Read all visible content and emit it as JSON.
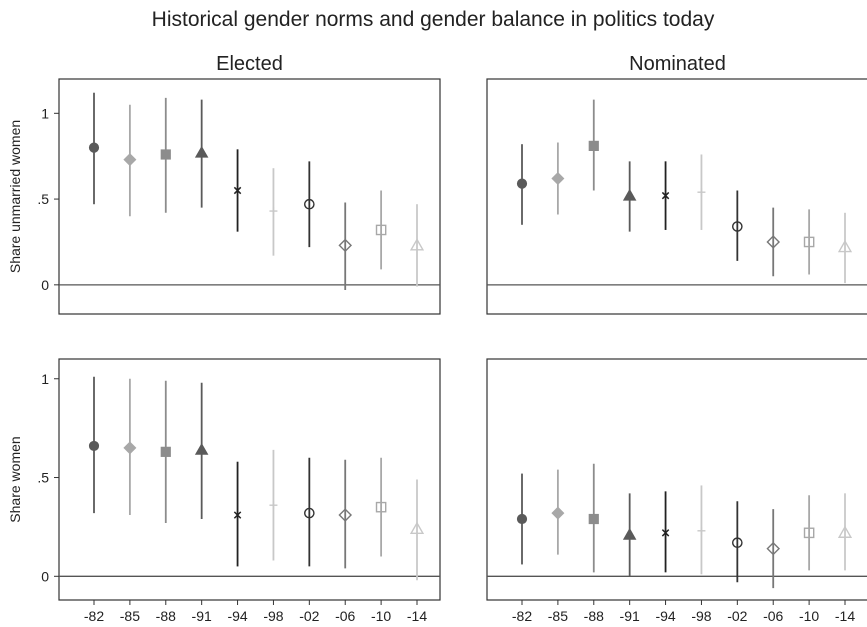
{
  "figure_title": "Historical gender norms and gender balance in politics today",
  "colors": {
    "frame": "#333333",
    "zero_line": "#555555",
    "series_colors": [
      "#5a5a5a",
      "#a8a8a8",
      "#8c8c8c",
      "#5a5a5a",
      "#222222",
      "#c8c8c8",
      "#333333",
      "#777777",
      "#a8a8a8",
      "#c8c8c8"
    ]
  },
  "markers": [
    "circle-filled",
    "diamond-filled",
    "square-filled",
    "triangle-filled",
    "cross",
    "plus",
    "circle-open",
    "diamond-open",
    "square-open",
    "triangle-open"
  ],
  "chart_data": [
    {
      "type": "scatter",
      "panel": "top-left",
      "title": "Elected",
      "ylabel": "Share unmarried women",
      "categories": [
        "-82",
        "-85",
        "-88",
        "-91",
        "-94",
        "-98",
        "-02",
        "-06",
        "-10",
        "-14"
      ],
      "yticks": [
        "0",
        ".5",
        "1"
      ],
      "ylim": [
        -0.17,
        1.2
      ],
      "values": [
        0.8,
        0.73,
        0.76,
        0.77,
        0.55,
        0.43,
        0.47,
        0.23,
        0.32,
        0.23
      ],
      "ci_low": [
        0.47,
        0.4,
        0.42,
        0.45,
        0.31,
        0.17,
        0.22,
        -0.03,
        0.09,
        -0.01
      ],
      "ci_high": [
        1.12,
        1.05,
        1.09,
        1.08,
        0.79,
        0.68,
        0.72,
        0.48,
        0.55,
        0.47
      ]
    },
    {
      "type": "scatter",
      "panel": "top-right",
      "title": "Nominated",
      "ylabel": "",
      "categories": [
        "-82",
        "-85",
        "-88",
        "-91",
        "-94",
        "-98",
        "-02",
        "-06",
        "-10",
        "-14"
      ],
      "yticks": [],
      "ylim": [
        -0.17,
        1.2
      ],
      "values": [
        0.59,
        0.62,
        0.81,
        0.52,
        0.52,
        0.54,
        0.34,
        0.25,
        0.25,
        0.22
      ],
      "ci_low": [
        0.35,
        0.41,
        0.55,
        0.31,
        0.32,
        0.32,
        0.14,
        0.05,
        0.06,
        0.01
      ],
      "ci_high": [
        0.82,
        0.83,
        1.08,
        0.72,
        0.72,
        0.76,
        0.55,
        0.45,
        0.44,
        0.42
      ]
    },
    {
      "type": "scatter",
      "panel": "bottom-left",
      "title": "",
      "ylabel": "Share women",
      "categories": [
        "-82",
        "-85",
        "-88",
        "-91",
        "-94",
        "-98",
        "-02",
        "-06",
        "-10",
        "-14"
      ],
      "yticks": [
        "0",
        ".5",
        "1"
      ],
      "ylim": [
        -0.12,
        1.1
      ],
      "values": [
        0.66,
        0.65,
        0.63,
        0.64,
        0.31,
        0.36,
        0.32,
        0.31,
        0.35,
        0.24
      ],
      "ci_low": [
        0.32,
        0.31,
        0.27,
        0.29,
        0.05,
        0.08,
        0.05,
        0.04,
        0.1,
        -0.02
      ],
      "ci_high": [
        1.01,
        1.0,
        0.99,
        0.98,
        0.58,
        0.64,
        0.6,
        0.59,
        0.6,
        0.49
      ]
    },
    {
      "type": "scatter",
      "panel": "bottom-right",
      "title": "",
      "ylabel": "",
      "categories": [
        "-82",
        "-85",
        "-88",
        "-91",
        "-94",
        "-98",
        "-02",
        "-06",
        "-10",
        "-14"
      ],
      "yticks": [],
      "ylim": [
        -0.12,
        1.1
      ],
      "values": [
        0.29,
        0.32,
        0.29,
        0.21,
        0.22,
        0.23,
        0.17,
        0.14,
        0.22,
        0.22
      ],
      "ci_low": [
        0.06,
        0.11,
        0.02,
        0.0,
        0.02,
        0.01,
        -0.03,
        -0.06,
        0.03,
        0.03
      ],
      "ci_high": [
        0.52,
        0.54,
        0.57,
        0.42,
        0.43,
        0.46,
        0.38,
        0.34,
        0.41,
        0.42
      ]
    }
  ]
}
